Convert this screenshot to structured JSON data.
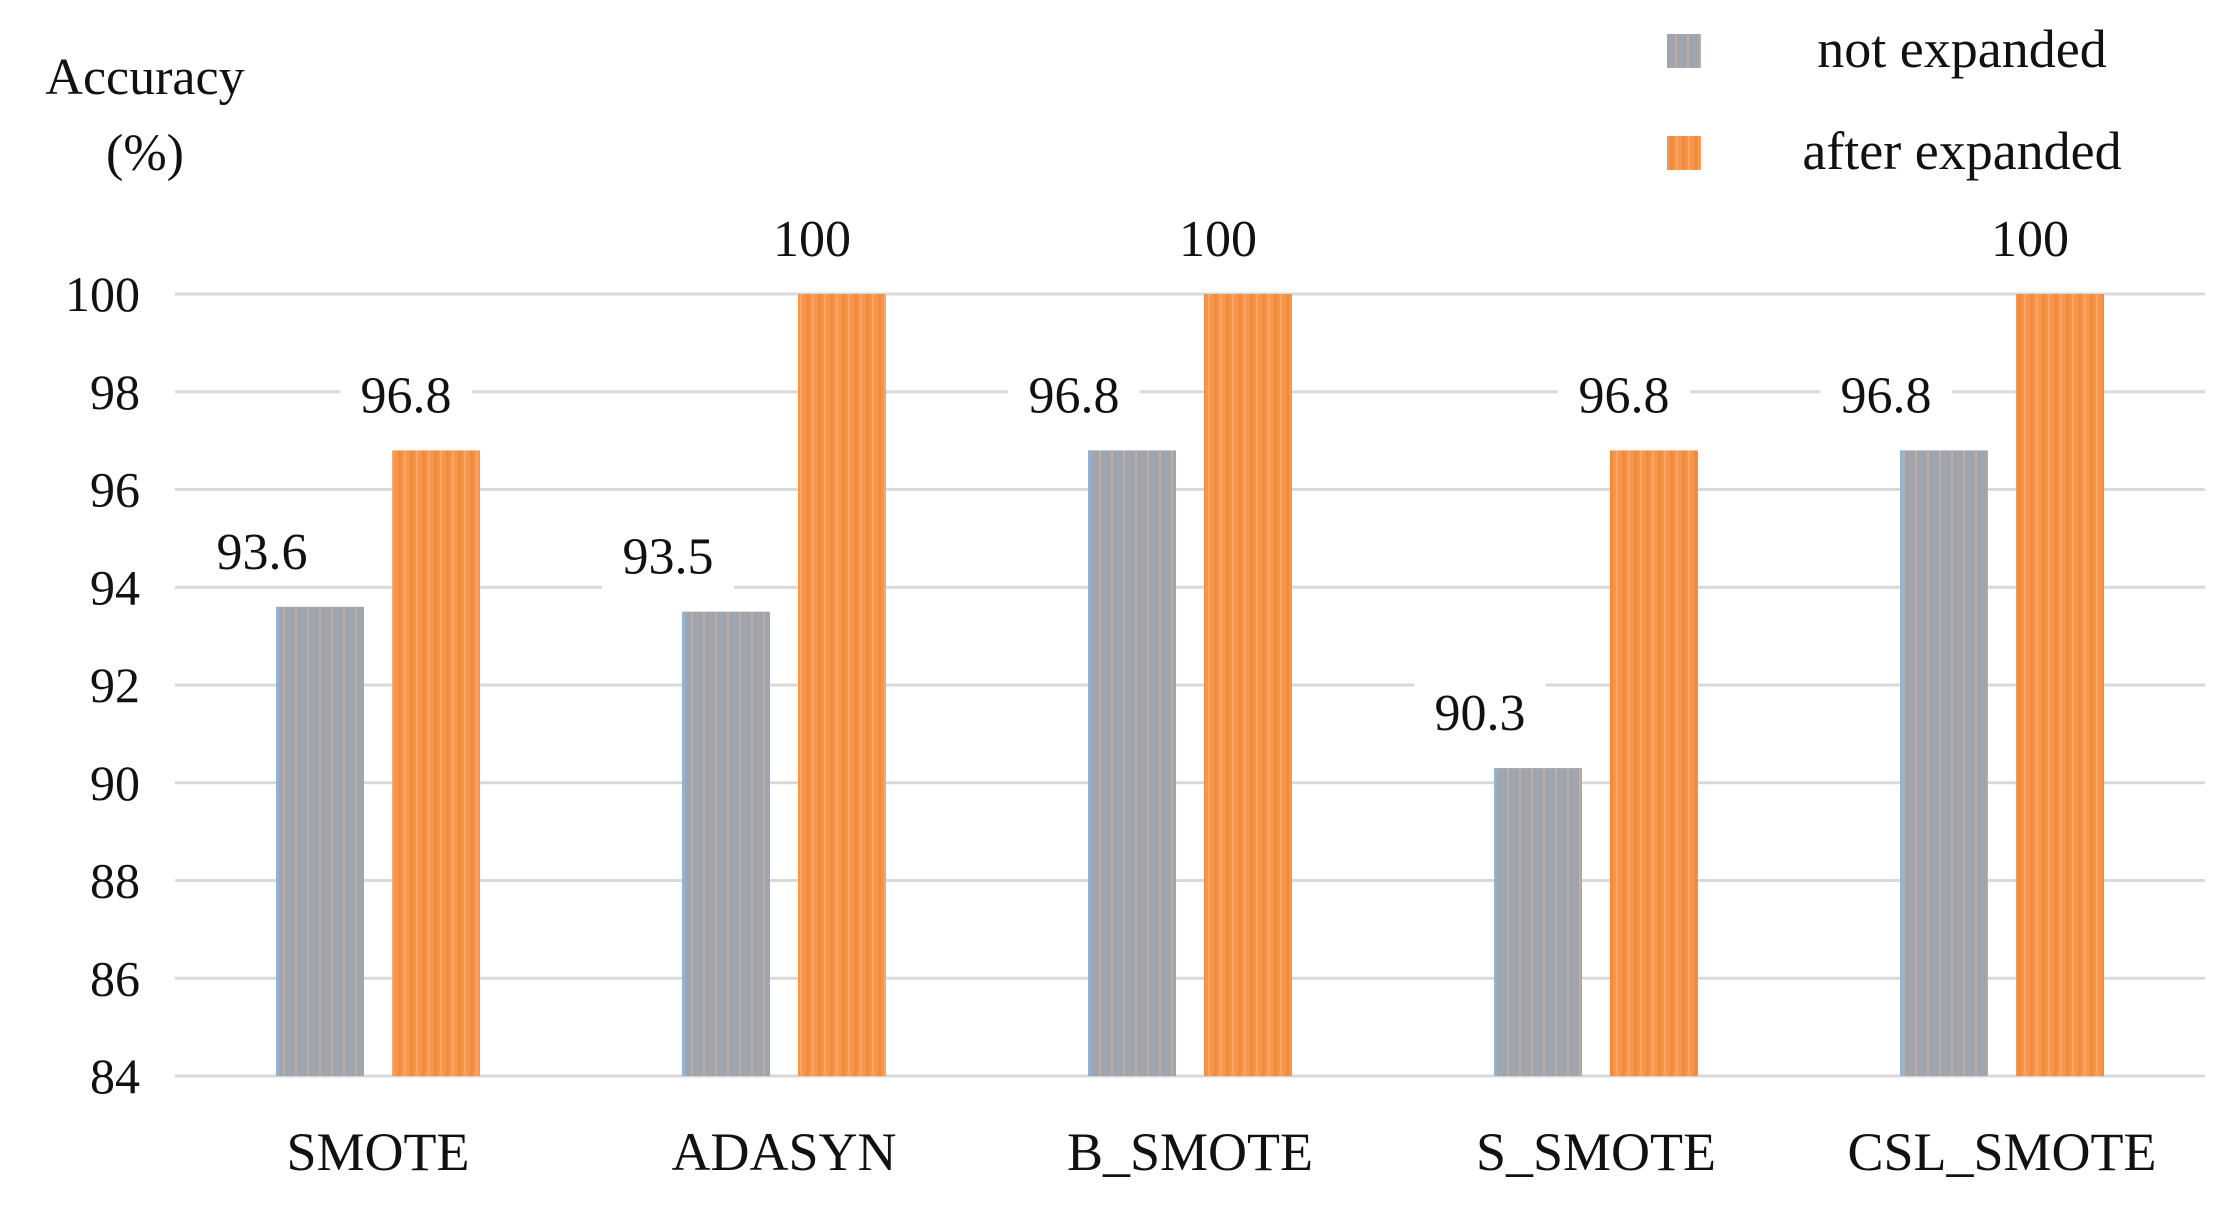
{
  "chart_data": {
    "type": "bar",
    "title": "",
    "xlabel": "",
    "ylabel": "Accuracy",
    "ylabel_unit": "(%)",
    "ylim": [
      84,
      100
    ],
    "yticks": [
      84,
      86,
      88,
      90,
      92,
      94,
      96,
      98,
      100
    ],
    "grid": true,
    "legend_position": "top-right",
    "categories": [
      "SMOTE",
      "ADASYN",
      "B_SMOTE",
      "S_SMOTE",
      "CSL_SMOTE"
    ],
    "series": [
      {
        "name": "not expanded",
        "color": "#a5a5a5",
        "values": [
          93.6,
          93.5,
          96.8,
          90.3,
          96.8
        ]
      },
      {
        "name": "after expanded",
        "color": "#f79646",
        "values": [
          96.8,
          100,
          100,
          96.8,
          100
        ]
      }
    ],
    "data_labels": [
      [
        "93.6",
        "93.5",
        "96.8",
        "90.3",
        "96.8"
      ],
      [
        "96.8",
        "100",
        "100",
        "96.8",
        "100"
      ]
    ]
  }
}
